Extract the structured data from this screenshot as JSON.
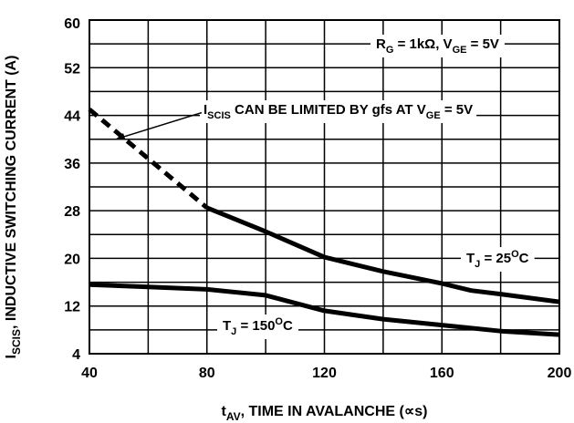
{
  "chart_data": {
    "type": "line",
    "title": "",
    "xlabel": "t_AV, TIME IN AVALANCHE (∝s)",
    "xlabel_parts": {
      "main": "t",
      "sub": "AV",
      "rest": ", TIME IN AVALANCHE (∝s)"
    },
    "ylabel": "I_SCIS, INDUCTIVE SWITCHING CURRENT (A)",
    "ylabel_parts": {
      "main": "I",
      "sub": "SCIS",
      "rest": ", INDUCTIVE SWITCHING CURRENT (A)"
    },
    "xlim": [
      40,
      200
    ],
    "ylim": [
      4,
      60
    ],
    "x_ticks": [
      40,
      80,
      120,
      160,
      200
    ],
    "y_ticks": [
      4,
      12,
      20,
      28,
      36,
      44,
      52,
      60
    ],
    "grid": true,
    "series": [
      {
        "name": "T_J = 25°C (gfs limited)",
        "style": "dashed",
        "color": "#000000",
        "x": [
          40,
          80
        ],
        "y": [
          45,
          28.5
        ]
      },
      {
        "name": "T_J = 25°C",
        "style": "solid",
        "color": "#000000",
        "x": [
          80,
          100,
          120,
          140,
          160,
          170,
          180,
          200
        ],
        "y": [
          28.5,
          24.5,
          20.2,
          17.8,
          15.8,
          14.6,
          14.0,
          12.7
        ]
      },
      {
        "name": "T_J = 150°C",
        "style": "solid",
        "color": "#000000",
        "x": [
          40,
          60,
          80,
          100,
          120,
          140,
          160,
          180,
          200
        ],
        "y": [
          15.6,
          15.2,
          14.8,
          13.8,
          11.2,
          9.8,
          8.8,
          7.8,
          7.2
        ]
      }
    ],
    "annotations": {
      "conditions": {
        "parts": [
          "R",
          "G",
          " = 1kΩ, V",
          "GE",
          " = 5V"
        ]
      },
      "limit_note": {
        "parts": [
          "I",
          "SCIS",
          " CAN BE LIMITED BY gfs AT V",
          "GE",
          " = 5V"
        ],
        "arrow_to": [
          48,
          40.5
        ]
      },
      "tj25": {
        "parts": [
          "T",
          "J",
          " = 25",
          "O",
          "C"
        ]
      },
      "tj150": {
        "parts": [
          "T",
          "J",
          " = 150",
          "O",
          "C"
        ]
      }
    }
  }
}
